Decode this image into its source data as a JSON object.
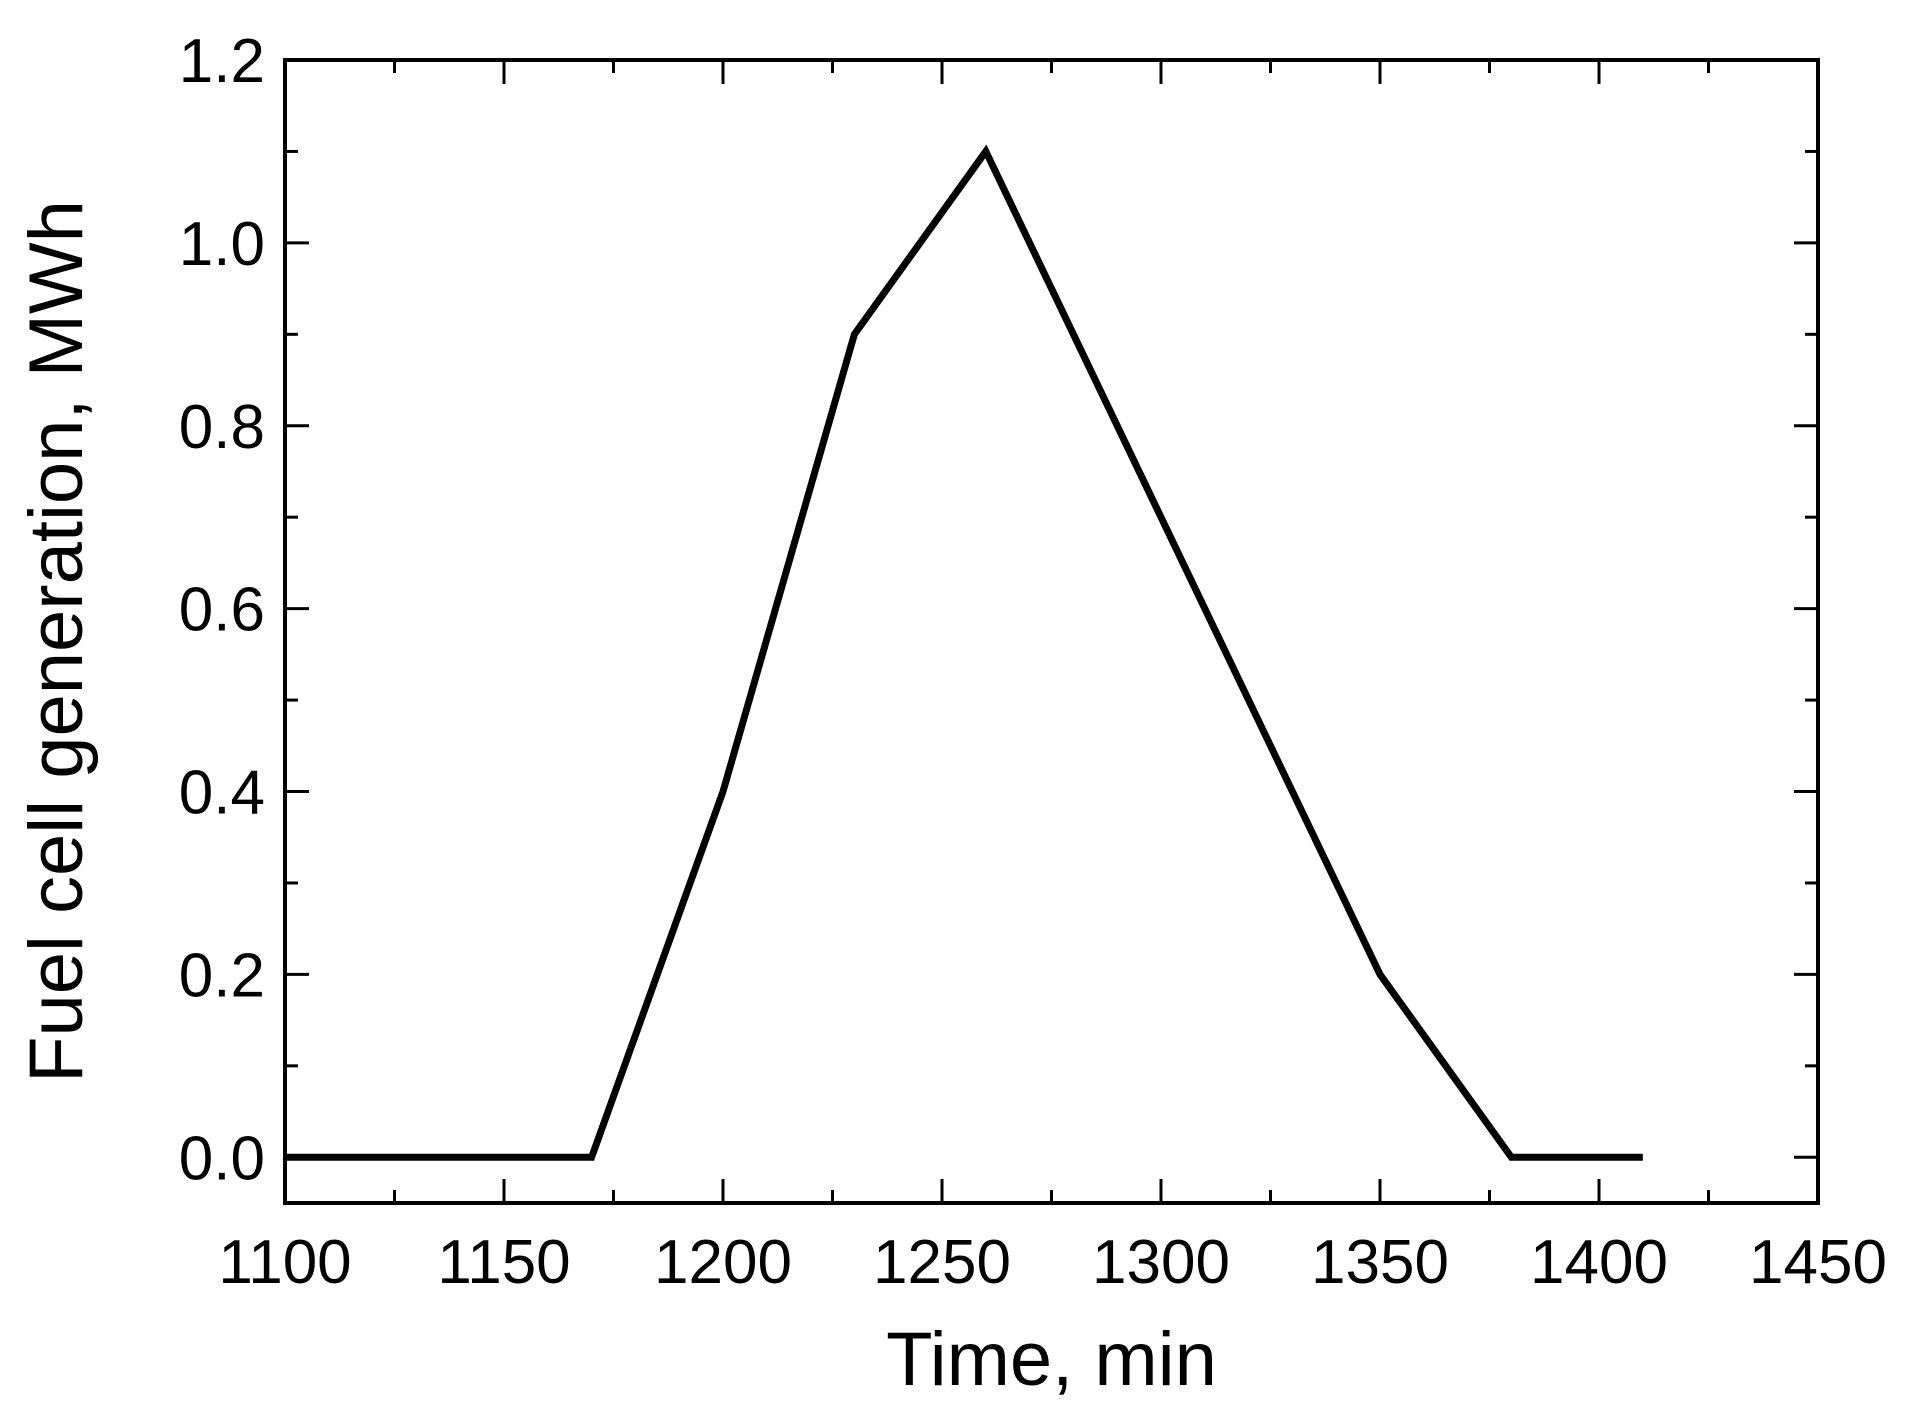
{
  "chart_data": {
    "type": "line",
    "title": "",
    "xlabel": "Time, min",
    "ylabel": "Fuel cell generation, MWh",
    "xlim": [
      1100,
      1450
    ],
    "ylim": [
      -0.05,
      1.2
    ],
    "x_ticks": [
      1100,
      1150,
      1200,
      1250,
      1300,
      1350,
      1400,
      1450
    ],
    "x_tick_labels": [
      "1100",
      "1150",
      "1200",
      "1250",
      "1300",
      "1350",
      "1400",
      "1450"
    ],
    "y_ticks": [
      0.0,
      0.2,
      0.4,
      0.6,
      0.8,
      1.0,
      1.2
    ],
    "y_tick_labels": [
      "0.0",
      "0.2",
      "0.4",
      "0.6",
      "0.8",
      "1.0",
      "1.2"
    ],
    "grid": false,
    "legend": "none",
    "series": [
      {
        "color": "#000000",
        "x": [
          1100,
          1170,
          1200,
          1230,
          1260,
          1350,
          1380,
          1410
        ],
        "y": [
          0.0,
          0.0,
          0.4,
          0.9,
          1.1,
          0.2,
          0.0,
          0.0
        ]
      }
    ]
  }
}
